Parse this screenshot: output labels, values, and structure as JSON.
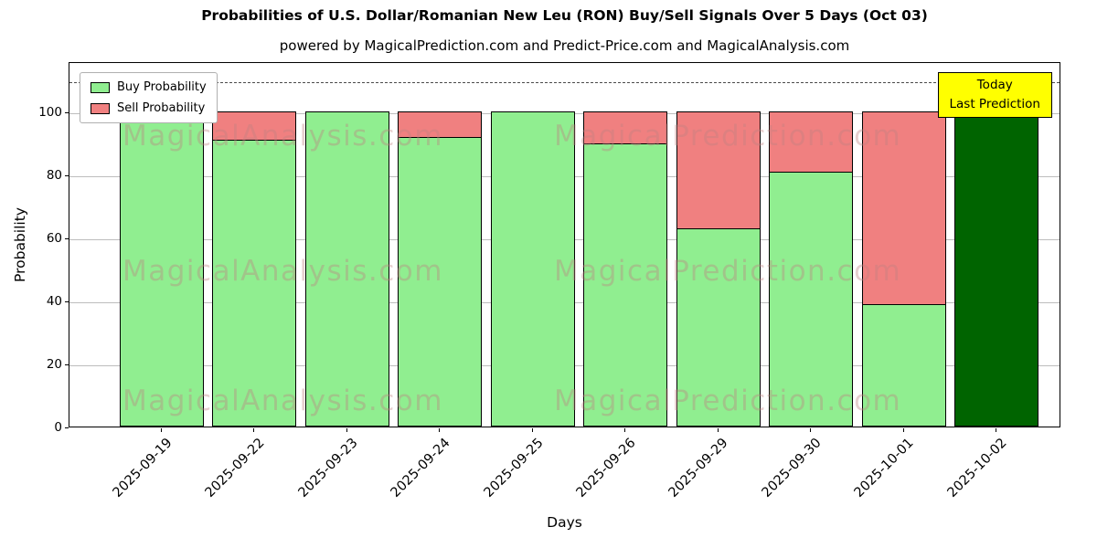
{
  "title": "Probabilities of U.S. Dollar/Romanian New Leu (RON) Buy/Sell Signals Over 5 Days (Oct 03)",
  "subtitle": "powered by MagicalPrediction.com and Predict-Price.com and MagicalAnalysis.com",
  "chart_data": {
    "type": "bar",
    "stacked": true,
    "title": "Probabilities of U.S. Dollar/Romanian New Leu (RON) Buy/Sell Signals Over 5 Days (Oct 03)",
    "xlabel": "Days",
    "ylabel": "Probability",
    "categories": [
      "2025-09-19",
      "2025-09-22",
      "2025-09-23",
      "2025-09-24",
      "2025-09-25",
      "2025-09-26",
      "2025-09-29",
      "2025-09-30",
      "2025-10-01",
      "2025-10-02"
    ],
    "series": [
      {
        "name": "Buy Probability",
        "color": "#90EE90",
        "values": [
          100,
          91,
          100,
          92,
          100,
          90,
          63,
          81,
          39,
          100
        ]
      },
      {
        "name": "Sell Probability",
        "color": "#F08080",
        "values": [
          0,
          9,
          0,
          8,
          0,
          10,
          37,
          19,
          61,
          0
        ]
      }
    ],
    "today_bar": {
      "index": 9,
      "color": "#006400"
    },
    "ylim": [
      0,
      116
    ],
    "yticks": [
      0,
      20,
      40,
      60,
      80,
      100
    ],
    "dashed_line_y": 110,
    "grid": true,
    "legend_position": "upper left",
    "annotation": {
      "lines": [
        "Today",
        "Last Prediction"
      ],
      "bg": "#FFFF00"
    },
    "watermarks": {
      "left_text": "MagicalAnalysis.com",
      "right_text": "MagicalPrediction.com"
    }
  }
}
